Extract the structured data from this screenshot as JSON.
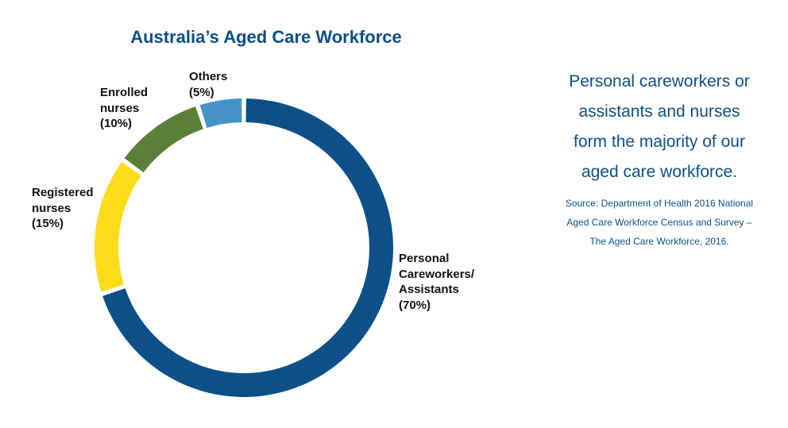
{
  "chart_data": {
    "type": "pie",
    "variant": "donut",
    "title": "Australia’s Aged Care Workforce",
    "slices": [
      {
        "label": "Personal\nCareworkers/\nAssistants\n(70%)",
        "value": 70,
        "color": "#0c5087"
      },
      {
        "label": "Registered\nnurses\n(15%)",
        "value": 15,
        "color": "#fcdc1b"
      },
      {
        "label": "Enrolled\nnurses\n(10%)",
        "value": 10,
        "color": "#5b8138"
      },
      {
        "label": "Others\n(5%)",
        "value": 5,
        "color": "#4593c8"
      }
    ]
  },
  "side_note": {
    "text": "Personal careworkers or\nassistants and nurses\nform the majority of our\naged care workforce.",
    "source": "Source: Department of Health 2016 National\nAged Care Workforce Census and Survey –\nThe Aged Care Workforce, 2016."
  }
}
